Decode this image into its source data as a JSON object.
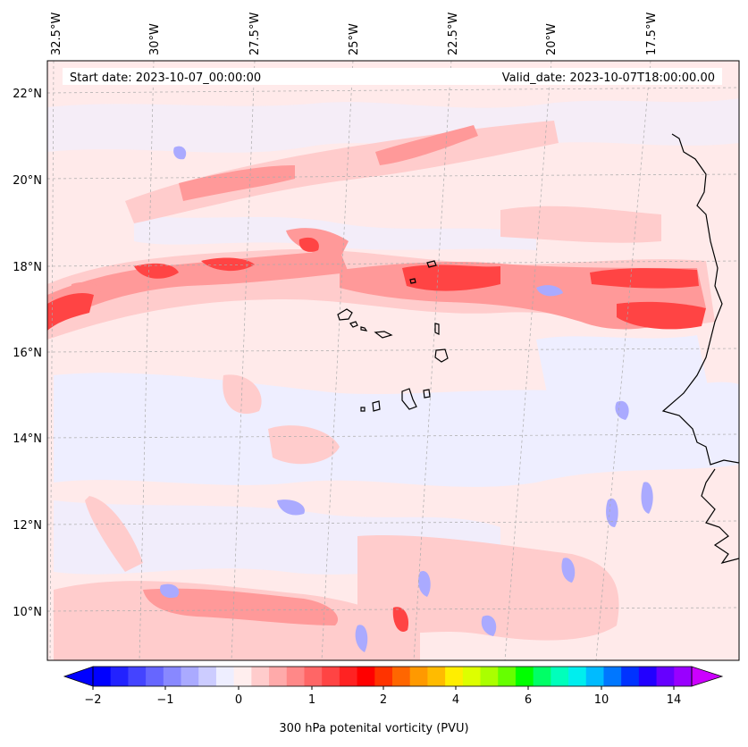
{
  "header": {
    "start_date": "Start date: 2023-10-07_00:00:00",
    "valid_date": "Valid_date: 2023-10-07T18:00:00.00"
  },
  "map": {
    "lon_labels": [
      "32.5°W",
      "30°W",
      "27.5°W",
      "25°W",
      "22.5°W",
      "20°W",
      "17.5°W"
    ],
    "lat_labels": [
      "22°N",
      "20°N",
      "18°N",
      "16°N",
      "14°N",
      "12°N",
      "10°N"
    ],
    "extent": {
      "lon": [
        -33,
        -15.5
      ],
      "lat": [
        8.9,
        22.8
      ]
    }
  },
  "colorbar": {
    "caption": "300 hPa potenital vorticity (PVU)",
    "tick_labels": [
      "−2",
      "−1",
      "0",
      "1",
      "2",
      "4",
      "6",
      "10",
      "14"
    ],
    "colors": [
      "#0000ff",
      "#2222ff",
      "#4444ff",
      "#6666ff",
      "#8888ff",
      "#aaaaff",
      "#ccccff",
      "#eeeeff",
      "#ffeeee",
      "#ffcccc",
      "#ffaaaa",
      "#ff8888",
      "#ff6666",
      "#ff4444",
      "#ff2222",
      "#ff0000",
      "#ff3300",
      "#ff6600",
      "#ff9900",
      "#ffbb00",
      "#ffee00",
      "#ddff00",
      "#aaff00",
      "#66ff00",
      "#00ff00",
      "#00ff66",
      "#00ffbb",
      "#00eeee",
      "#00bbff",
      "#0077ff",
      "#0033ff",
      "#2200ff",
      "#6600ff",
      "#9900ff"
    ]
  }
}
